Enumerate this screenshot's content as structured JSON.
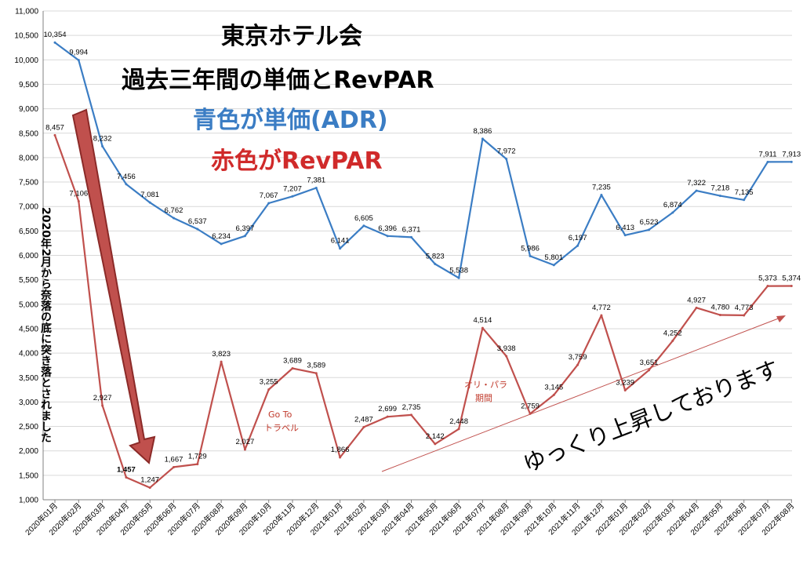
{
  "chart_data": {
    "type": "line",
    "title_lines": [
      "東京ホテル会",
      "過去三年間の単価とRevPAR",
      "青色が単価(ADR)",
      "赤色がRevPAR"
    ],
    "ylim": [
      1000,
      11000
    ],
    "y_ticks": [
      "1,000",
      "1,500",
      "2,000",
      "2,500",
      "3,000",
      "3,500",
      "4,000",
      "4,500",
      "5,000",
      "5,500",
      "6,000",
      "6,500",
      "7,000",
      "7,500",
      "8,000",
      "8,500",
      "9,000",
      "9,500",
      "10,000",
      "10,500",
      "11,000"
    ],
    "categories": [
      "2020年01月",
      "2020年02月",
      "2020年03月",
      "2020年04月",
      "2020年05月",
      "2020年06月",
      "2020年07月",
      "2020年08月",
      "2020年09月",
      "2020年10月",
      "2020年11月",
      "2020年12月",
      "2021年01月",
      "2021年02月",
      "2021年03月",
      "2021年04月",
      "2021年05月",
      "2021年06月",
      "2021年07月",
      "2021年08月",
      "2021年09月",
      "2021年10月",
      "2021年11月",
      "2021年12月",
      "2022年01月",
      "2022年02月",
      "2022年03月",
      "2022年04月",
      "2022年05月",
      "2022年06月",
      "2022年07月",
      "2022年08月"
    ],
    "series": [
      {
        "color": "#3b7dc4",
        "values": [
          10354,
          9994,
          8232,
          7456,
          7081,
          6762,
          6537,
          6234,
          6397,
          7067,
          7207,
          7381,
          6141,
          6605,
          6396,
          6371,
          5823,
          5538,
          8386,
          7972,
          5986,
          5801,
          6197,
          7235,
          6413,
          6523,
          6874,
          7322,
          7218,
          7135,
          7911,
          7913
        ],
        "labels": [
          "10,354",
          "9,994",
          "8,232",
          "7,456",
          "7,081",
          "6,762",
          "6,537",
          "6,234",
          "6,397",
          "7,067",
          "7,207",
          "7,381",
          "6,141",
          "6,605",
          "6,396",
          "6,371",
          "5,823",
          "5,538",
          "8,386",
          "7,972",
          "5,986",
          "5,801",
          "6,197",
          "7,235",
          "6,413",
          "6,523",
          "6,874",
          "7,322",
          "7,218",
          "7,135",
          "7,911",
          "7,913"
        ]
      },
      {
        "color": "#c0504d",
        "values": [
          8457,
          7106,
          2927,
          1457,
          1247,
          1667,
          1729,
          3823,
          2027,
          3255,
          3689,
          3589,
          1866,
          2487,
          2699,
          2735,
          2142,
          2448,
          4514,
          3938,
          2759,
          3145,
          3759,
          4772,
          3239,
          3651,
          4252,
          4927,
          4780,
          4773,
          5373,
          5374
        ],
        "labels": [
          "8,457",
          "7,106",
          "2,927",
          "1,457",
          "1,247",
          "1,667",
          "1,729",
          "3,823",
          "2,027",
          "3,255",
          "3,689",
          "3,589",
          "1,866",
          "2,487",
          "2,699",
          "2,735",
          "2,142",
          "2,448",
          "4,514",
          "3,938",
          "2,759",
          "3,145",
          "3,759",
          "4,772",
          "3,239",
          "3,651",
          "4,252",
          "4,927",
          "4,780",
          "4,773",
          "5,373",
          "5,374"
        ]
      }
    ],
    "annotations": {
      "goto": [
        "Go To",
        "トラベル"
      ],
      "olympics": [
        "オリ・パラ",
        "期間"
      ],
      "recovery": "ゆっくり上昇しております",
      "fall": "2020年2月から奈落の底に突き落とされました"
    },
    "grid": true
  }
}
